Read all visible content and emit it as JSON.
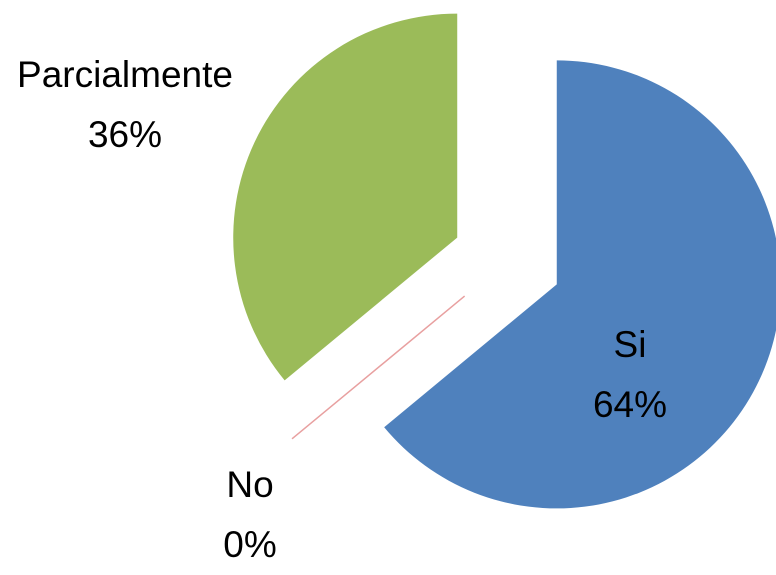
{
  "chart_data": {
    "type": "pie",
    "categories": [
      "Si",
      "No",
      "Parcialmente"
    ],
    "values": [
      64,
      0,
      36
    ],
    "value_labels": [
      "64%",
      "0%",
      "36%"
    ],
    "colors": [
      "#4f81bd",
      "#e8a0a0",
      "#9bbb59"
    ],
    "exploded": true
  }
}
